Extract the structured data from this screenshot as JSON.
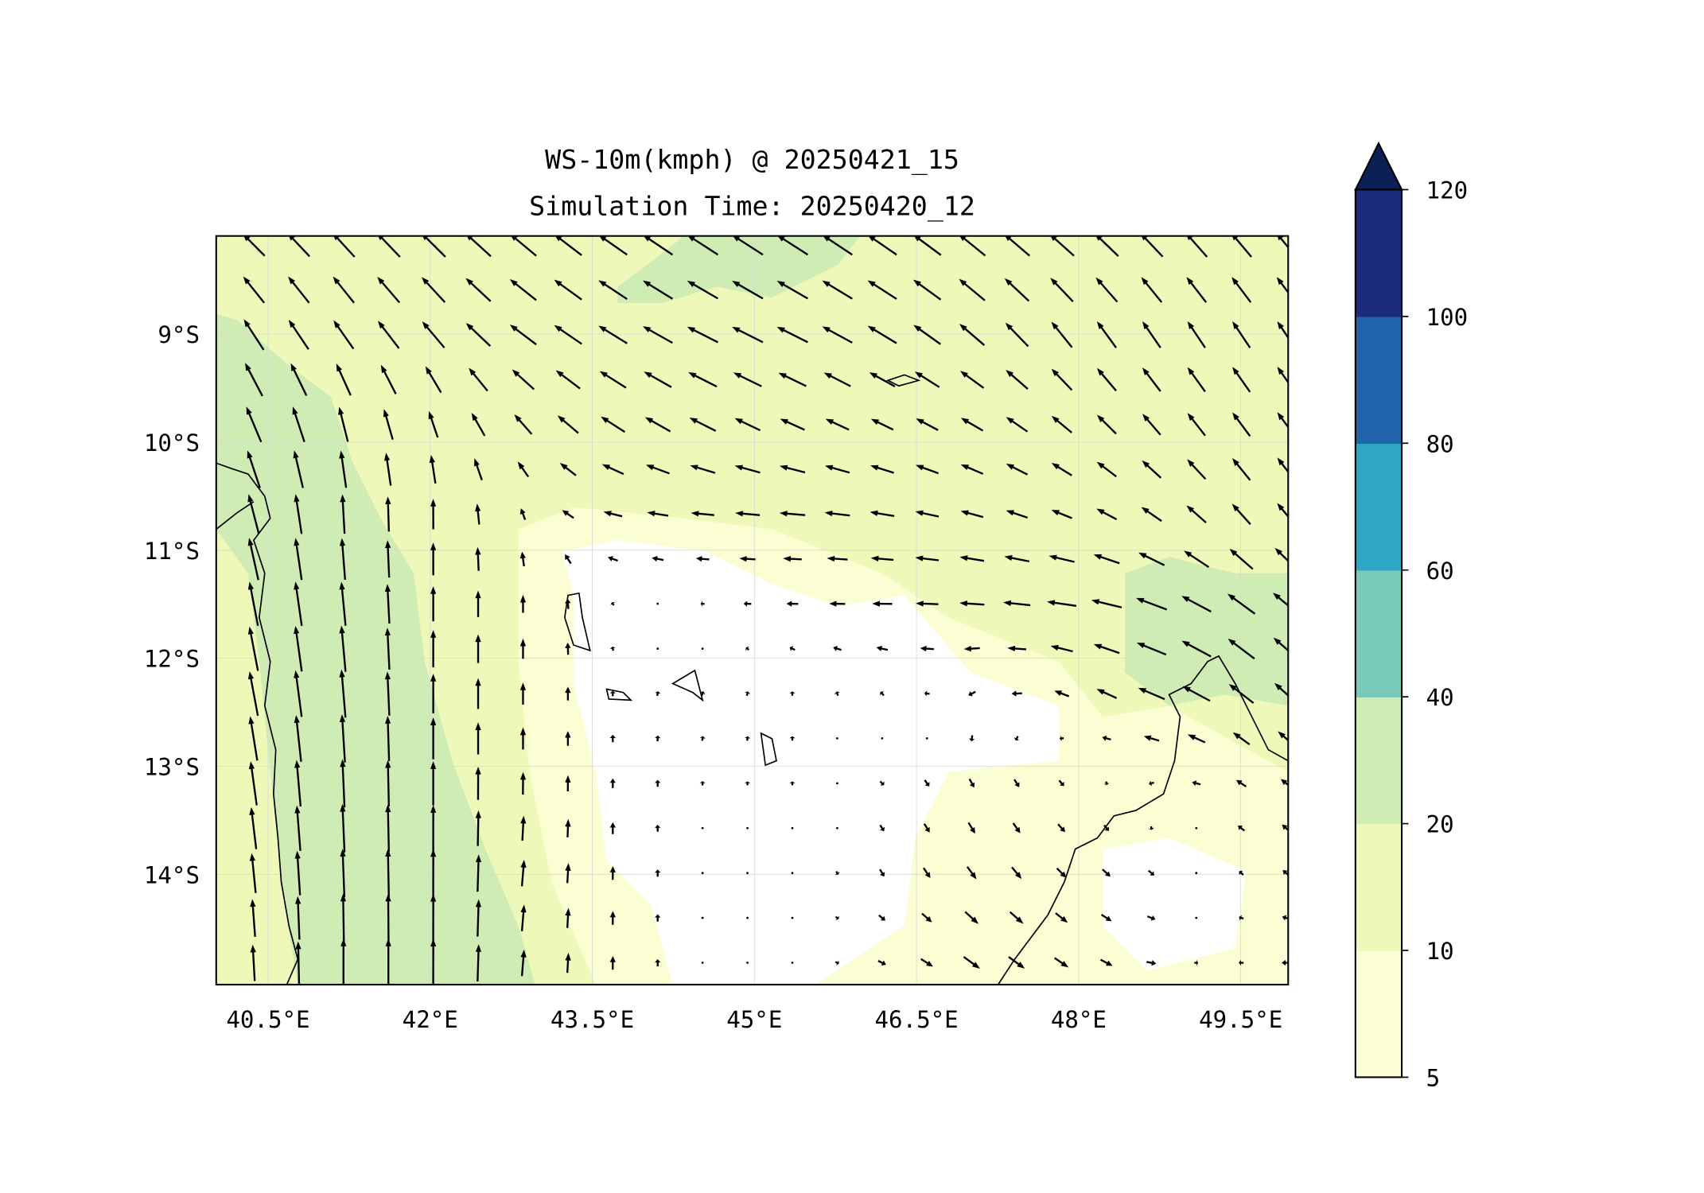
{
  "chart_data": {
    "type": "contourf+quiver",
    "title": "WS-10m(kmph) @ 20250421_15",
    "subtitle": "Simulation Time: 20250420_12",
    "variable": "10 m wind speed (kmph)",
    "xlim": [
      40.02,
      49.93
    ],
    "ylim": [
      -14.99,
      -8.09
    ],
    "xticks": [
      {
        "value": 40.5,
        "label": "40.5°E"
      },
      {
        "value": 42,
        "label": "42°E"
      },
      {
        "value": 43.5,
        "label": "43.5°E"
      },
      {
        "value": 45,
        "label": "45°E"
      },
      {
        "value": 46.5,
        "label": "46.5°E"
      },
      {
        "value": 48,
        "label": "48°E"
      },
      {
        "value": 49.5,
        "label": "49.5°E"
      }
    ],
    "yticks": [
      {
        "value": -9,
        "label": "9°S"
      },
      {
        "value": -10,
        "label": "10°S"
      },
      {
        "value": -11,
        "label": "11°S"
      },
      {
        "value": -12,
        "label": "12°S"
      },
      {
        "value": -13,
        "label": "13°S"
      },
      {
        "value": -14,
        "label": "14°S"
      }
    ],
    "grid": true,
    "colorbar": {
      "levels": [
        5,
        10,
        20,
        40,
        60,
        80,
        100,
        120
      ],
      "labels": [
        "5",
        "10",
        "20",
        "40",
        "60",
        "80",
        "100",
        "120"
      ],
      "colors": [
        "#fbfdd3",
        "#eef8b8",
        "#d0ecb5",
        "#78c9ba",
        "#2ea6c4",
        "#2264ab",
        "#1d2b7d"
      ],
      "extend_color": "#0c1f55",
      "extend": "max",
      "placement": "right"
    },
    "field_colors": {
      "calm": "#ffffff",
      "low": "#fbfdd3",
      "mid": "#eef8b8",
      "high": "#d0ecb5"
    },
    "wind_grid": {
      "note": "approximate u,v components (kmph) on coarse grid",
      "lons": [
        40.3,
        41.15,
        42.0,
        42.85,
        43.7,
        44.55,
        45.4,
        46.25,
        47.1,
        47.95,
        48.8,
        49.7
      ],
      "lats": [
        -8.2,
        -9.0,
        -9.9,
        -10.7,
        -11.5,
        -12.3,
        -13.1,
        -13.9,
        -14.7
      ],
      "u": [
        [
          -10,
          -10,
          -11,
          -12,
          -13,
          -14,
          -14,
          -13,
          -12,
          -11,
          -10,
          -9
        ],
        [
          -9,
          -9,
          -10,
          -12,
          -13,
          -14,
          -14,
          -13,
          -11,
          -9,
          -8,
          -8
        ],
        [
          -7,
          -4,
          -4,
          -8,
          -11,
          -12,
          -11,
          -10,
          -10,
          -9,
          -8,
          -8
        ],
        [
          -5,
          -1,
          0,
          -2,
          -9,
          -11,
          -12,
          -11,
          -10,
          -9,
          -9,
          -8
        ],
        [
          -4,
          -2,
          0,
          0,
          -1,
          -2,
          -6,
          -10,
          -12,
          -14,
          -14,
          -12
        ],
        [
          -4,
          -2,
          0,
          0,
          0,
          1,
          0,
          -2,
          -4,
          -8,
          -14,
          -11
        ],
        [
          -3,
          -1,
          0,
          0,
          0,
          0,
          0,
          2,
          2,
          2,
          -4,
          -5
        ],
        [
          -2,
          -1,
          0,
          1,
          0,
          0,
          0,
          2,
          4,
          4,
          2,
          -3
        ],
        [
          -1,
          0,
          0,
          1,
          0,
          0,
          0,
          4,
          8,
          6,
          4,
          -4
        ]
      ],
      "v": [
        [
          10,
          11,
          11,
          10,
          9,
          9,
          9,
          9,
          10,
          10,
          11,
          11
        ],
        [
          14,
          13,
          12,
          9,
          8,
          7,
          7,
          8,
          10,
          12,
          12,
          12
        ],
        [
          16,
          16,
          12,
          9,
          7,
          6,
          5,
          5,
          6,
          8,
          10,
          11
        ],
        [
          18,
          18,
          14,
          5,
          2,
          1,
          1,
          2,
          3,
          4,
          7,
          10
        ],
        [
          20,
          20,
          16,
          8,
          1,
          0,
          0,
          0,
          1,
          2,
          6,
          10
        ],
        [
          20,
          22,
          18,
          10,
          2,
          2,
          2,
          2,
          -2,
          4,
          6,
          10
        ],
        [
          20,
          22,
          20,
          10,
          4,
          2,
          2,
          -2,
          -4,
          -2,
          0,
          4
        ],
        [
          18,
          22,
          22,
          12,
          6,
          0,
          0,
          -4,
          -6,
          -4,
          -2,
          3
        ],
        [
          16,
          22,
          22,
          12,
          6,
          0,
          0,
          -2,
          -6,
          -4,
          0,
          0
        ]
      ]
    }
  }
}
